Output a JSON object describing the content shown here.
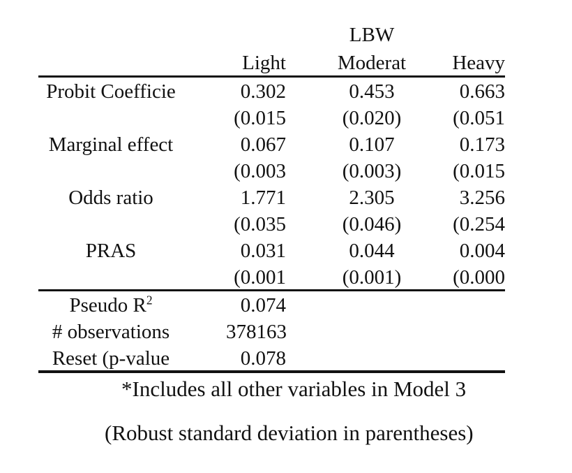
{
  "table": {
    "group_header": "LBW",
    "columns": [
      "Light",
      "Moderat",
      "Heavy"
    ],
    "rows": [
      {
        "label": "Probit Coefficie",
        "values": [
          "0.302",
          "0.453",
          "0.663"
        ]
      },
      {
        "label": "",
        "values": [
          "(0.015",
          "(0.020)",
          "(0.051"
        ]
      },
      {
        "label": "Marginal effect",
        "values": [
          "0.067",
          "0.107",
          "0.173"
        ]
      },
      {
        "label": "",
        "values": [
          "(0.003",
          "(0.003)",
          "(0.015"
        ]
      },
      {
        "label": "Odds ratio",
        "values": [
          "1.771",
          "2.305",
          "3.256"
        ]
      },
      {
        "label": "",
        "values": [
          "(0.035",
          "(0.046)",
          "(0.254"
        ]
      },
      {
        "label": "PRAS",
        "values": [
          "0.031",
          "0.044",
          "0.004"
        ]
      },
      {
        "label": "",
        "values": [
          "(0.001",
          "(0.001)",
          "(0.000"
        ]
      }
    ],
    "stats": [
      {
        "label": "Pseudo R",
        "superscript": "2",
        "value": "0.074"
      },
      {
        "label": "# observations",
        "value": "378163"
      },
      {
        "label": "Reset (p-value",
        "value": "0.078"
      }
    ]
  },
  "notes": {
    "line1": "*Includes all other variables in Model 3",
    "line2": "(Robust standard deviation in parentheses)"
  }
}
